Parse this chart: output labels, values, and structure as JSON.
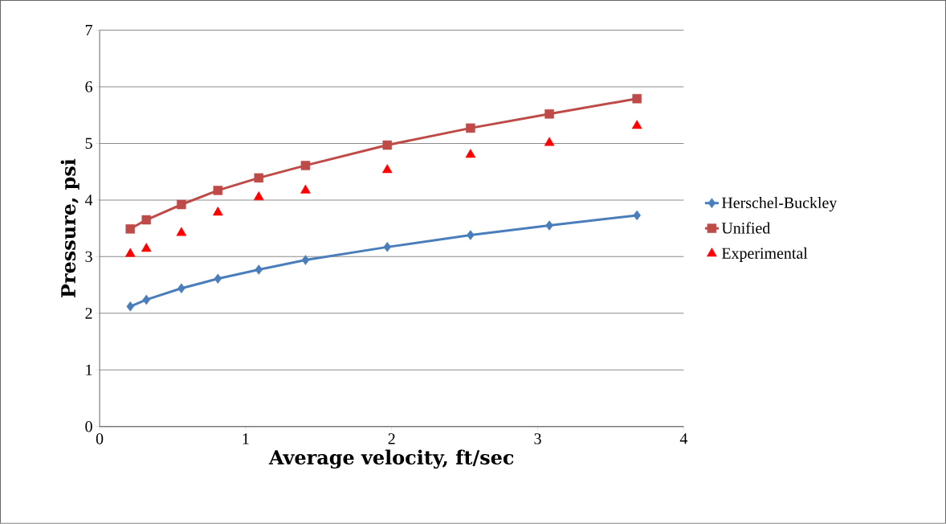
{
  "chart_data": {
    "type": "line",
    "xlabel": "Average velocity, ft/sec",
    "ylabel": "Pressure, psi",
    "x": [
      0.21,
      0.32,
      0.56,
      0.81,
      1.09,
      1.41,
      1.97,
      2.54,
      3.08,
      3.68
    ],
    "series": [
      {
        "name": "Herschel-Buckley",
        "color": "#4a7ebb",
        "marker": "diamond",
        "values": [
          2.12,
          2.24,
          2.44,
          2.61,
          2.77,
          2.94,
          3.17,
          3.38,
          3.55,
          3.73
        ]
      },
      {
        "name": "Unified",
        "color": "#be4b48",
        "marker": "square",
        "values": [
          3.49,
          3.65,
          3.92,
          4.17,
          4.39,
          4.61,
          4.97,
          5.27,
          5.52,
          5.79
        ]
      },
      {
        "name": "Experimental",
        "color": "#ff0000",
        "type": "scatter",
        "marker": "triangle",
        "values": [
          3.05,
          3.14,
          3.42,
          3.78,
          4.05,
          4.17,
          4.53,
          4.8,
          5.01,
          5.31
        ]
      }
    ],
    "xlim": [
      0,
      4
    ],
    "xticks": [
      0,
      1,
      2,
      3,
      4
    ],
    "ylim": [
      0,
      7
    ],
    "yticks": [
      0,
      1,
      2,
      3,
      4,
      5,
      6,
      7
    ],
    "grid": "y",
    "legend": "right"
  }
}
